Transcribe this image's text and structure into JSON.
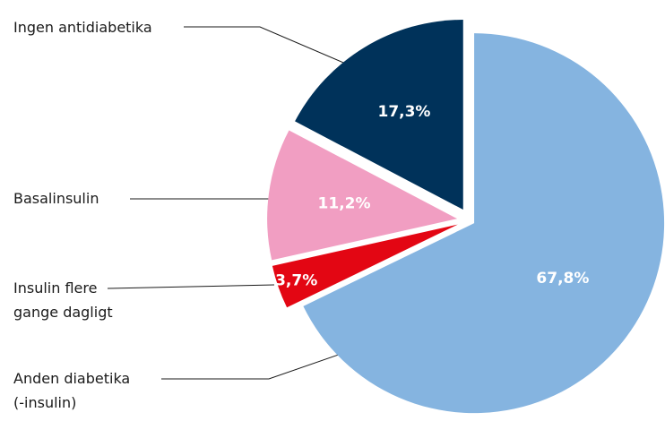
{
  "chart_data": {
    "type": "pie",
    "categories": [
      "Ingen antidiabetika",
      "Basalinsulin",
      "Insulin flere gange dagligt",
      "Anden diabetika (-insulin)"
    ],
    "values": [
      17.3,
      11.2,
      3.7,
      67.8
    ],
    "value_labels": [
      "17,3%",
      "11,2%",
      "3,7%",
      "67,8%"
    ],
    "colors": [
      "#00325a",
      "#f19ec2",
      "#e30613",
      "#85b4e0"
    ]
  }
}
